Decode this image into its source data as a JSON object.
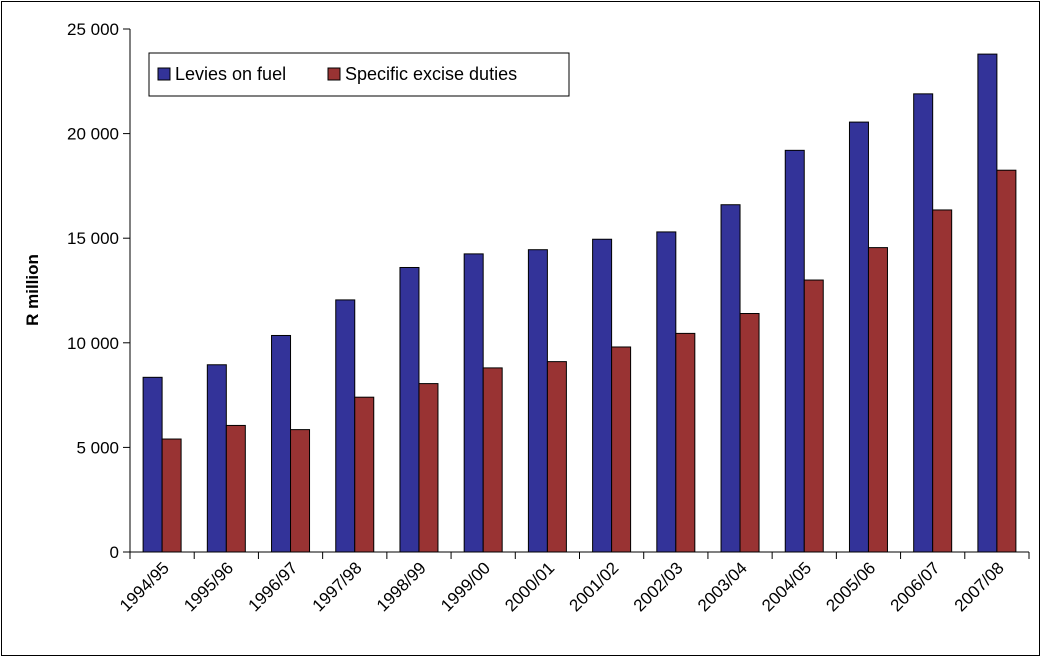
{
  "chart_data": {
    "type": "bar",
    "title": "",
    "xlabel": "",
    "ylabel": "R million",
    "ylim": [
      0,
      25000
    ],
    "yticks": [
      0,
      5000,
      10000,
      15000,
      20000,
      25000
    ],
    "ytick_labels": [
      "0",
      "5 000",
      "10 000",
      "15 000",
      "20 000",
      "25 000"
    ],
    "categories": [
      "1994/95",
      "1995/96",
      "1996/97",
      "1997/98",
      "1998/99",
      "1999/00",
      "2000/01",
      "2001/02",
      "2002/03",
      "2003/04",
      "2004/05",
      "2005/06",
      "2006/07",
      "2007/08"
    ],
    "series": [
      {
        "name": "Levies on fuel",
        "color": "#333399",
        "values": [
          8350,
          8950,
          10350,
          12050,
          13600,
          14250,
          14450,
          14950,
          15300,
          16600,
          19200,
          20550,
          21900,
          23800
        ]
      },
      {
        "name": "Specific excise duties",
        "color": "#993333",
        "values": [
          5400,
          6050,
          5850,
          7400,
          8050,
          8800,
          9100,
          9800,
          10450,
          11400,
          13000,
          14550,
          16350,
          18250
        ]
      }
    ],
    "grid": false,
    "legend_position": "top-left"
  }
}
